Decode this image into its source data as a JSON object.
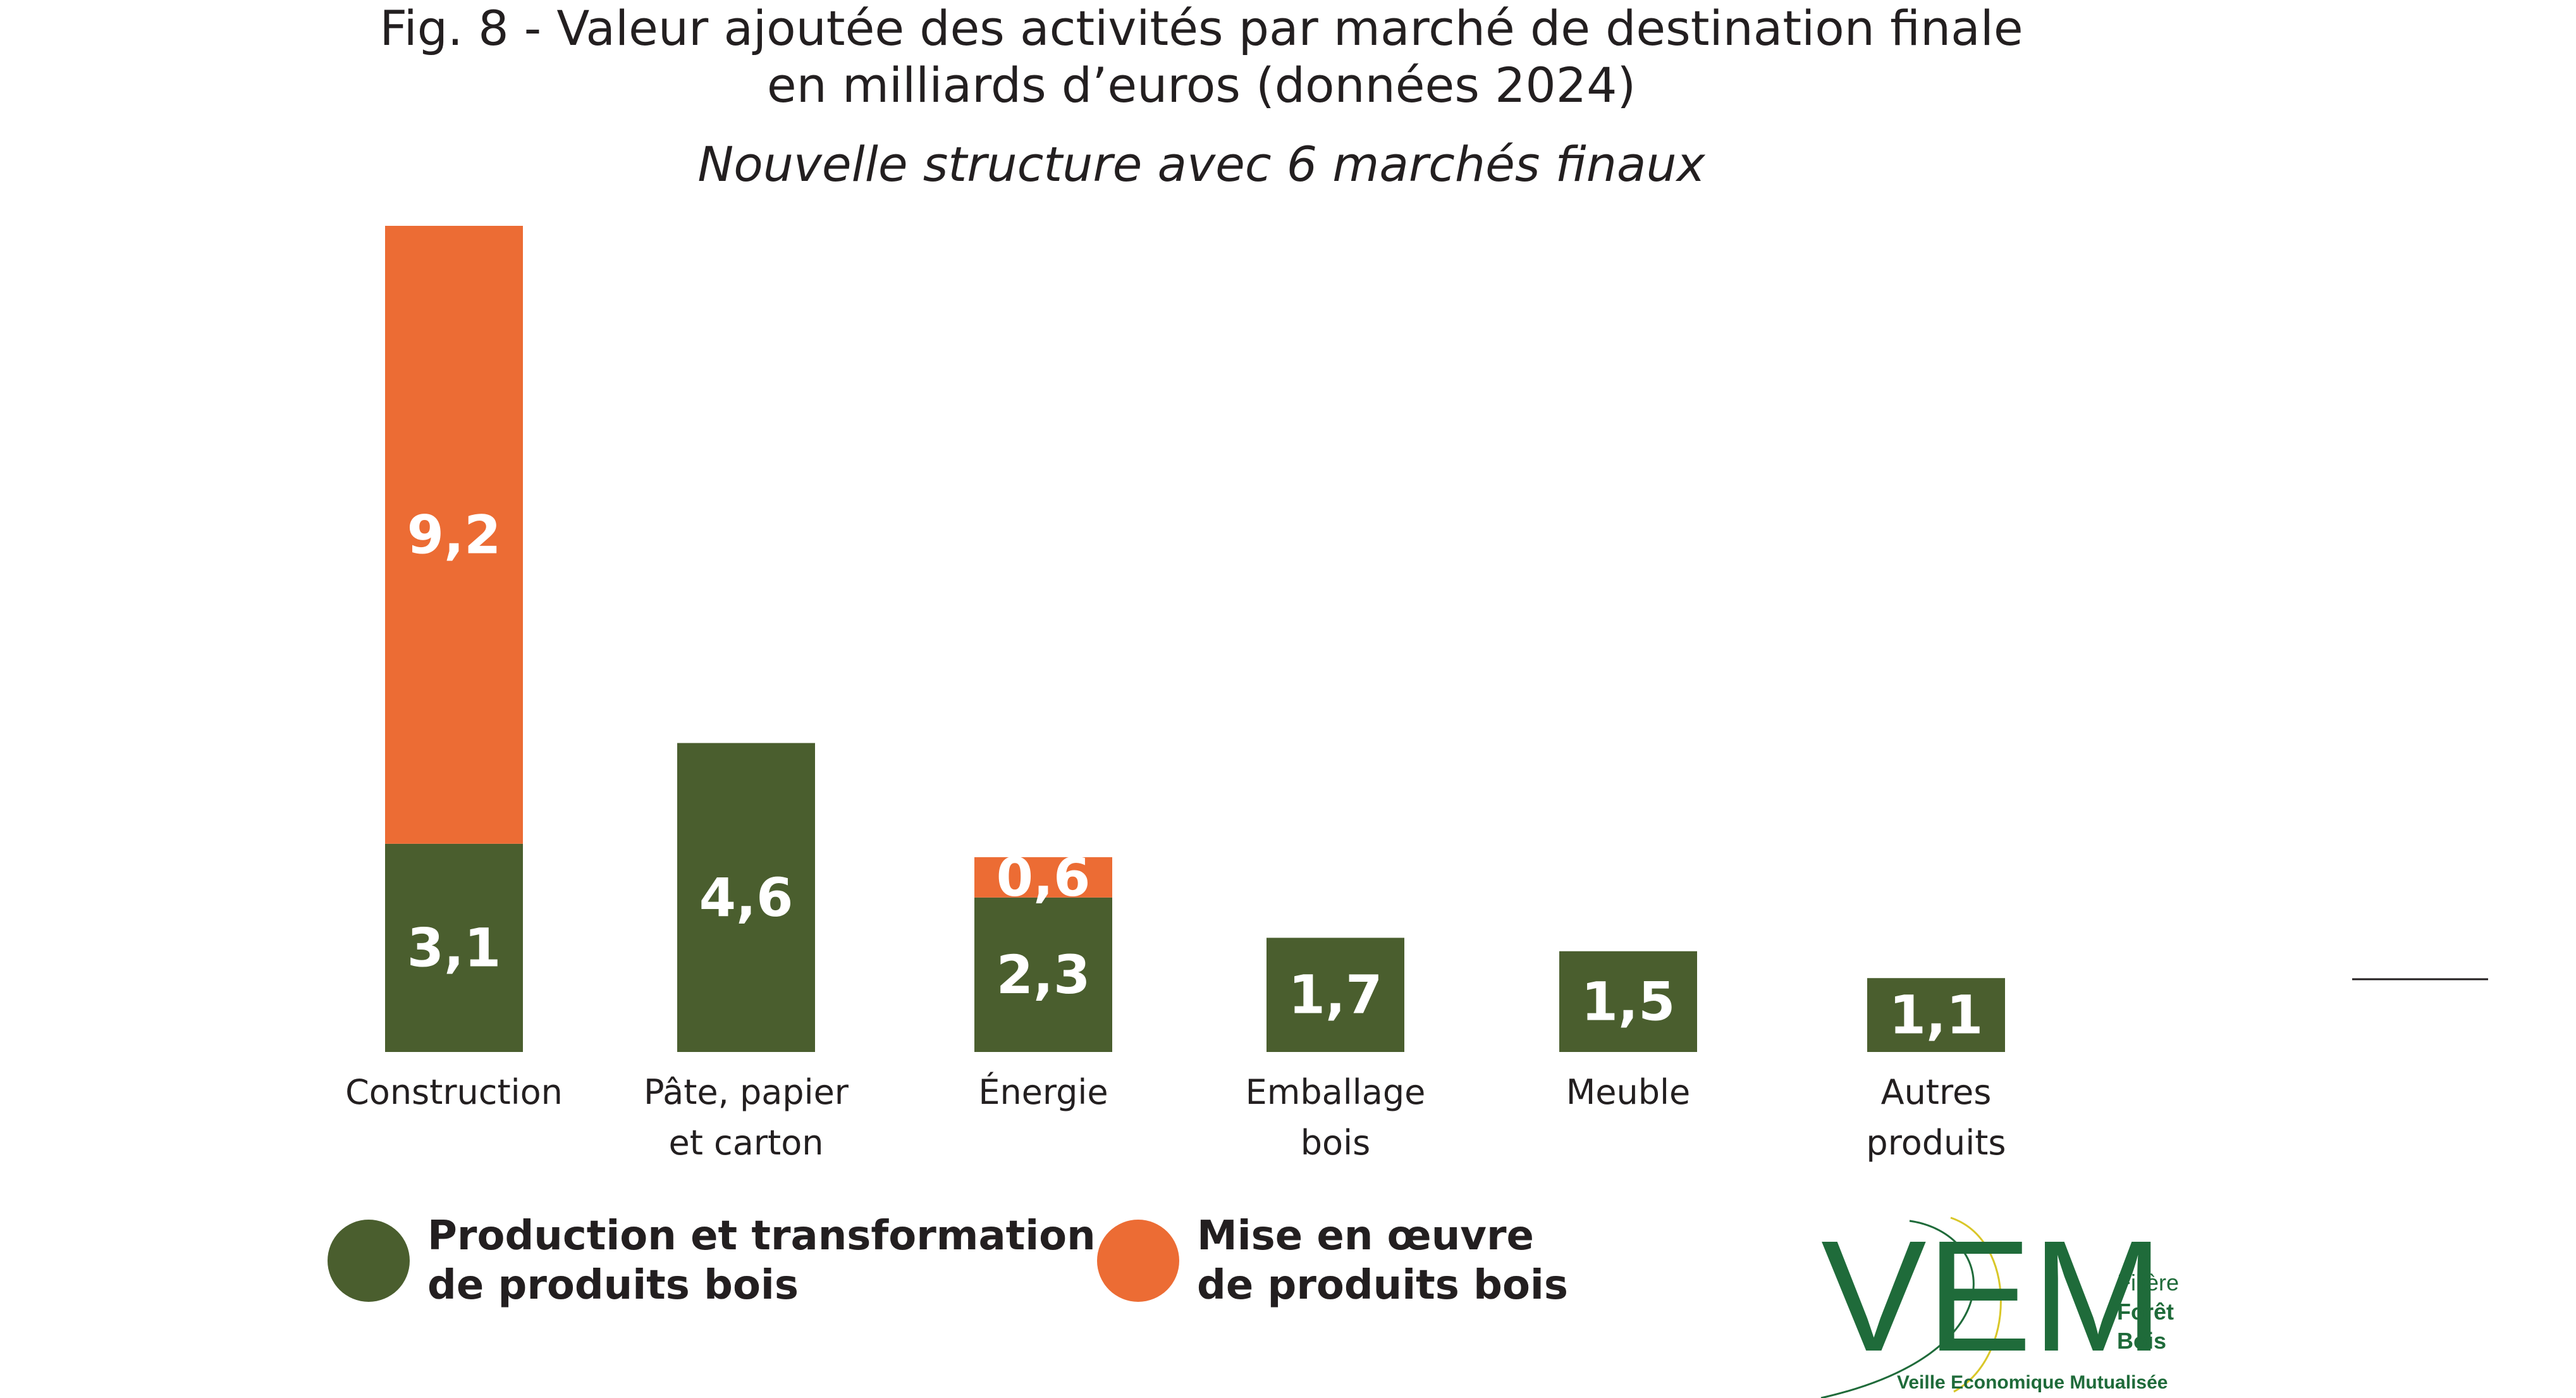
{
  "title": {
    "line1": "Fig. 8 - Valeur ajoutée des activités par marché de destination finale",
    "line2": "en milliards d’euros (données 2024)",
    "subtitle": "Nouvelle structure avec 6 marchés finaux"
  },
  "colors": {
    "production": "#4a5e2e",
    "mise_en_oeuvre": "#ec6c34",
    "logo_green": "#1f6b3a",
    "logo_yellow": "#d9c728"
  },
  "chart_data": {
    "type": "bar",
    "stacked": true,
    "categories": [
      [
        "Construction"
      ],
      [
        "Pâte, papier",
        "et carton"
      ],
      [
        "Énergie"
      ],
      [
        "Emballage",
        "bois"
      ],
      [
        "Meuble"
      ],
      [
        "Autres",
        "produits"
      ]
    ],
    "series": [
      {
        "name": "Production et transformation de produits bois",
        "color": "#4a5e2e",
        "values": [
          3.1,
          4.6,
          2.3,
          1.7,
          1.5,
          1.1
        ],
        "labels": [
          "3,1",
          "4,6",
          "2,3",
          "1,7",
          "1,5",
          "1,1"
        ]
      },
      {
        "name": "Mise en œuvre de produits bois",
        "color": "#ec6c34",
        "values": [
          9.2,
          0,
          0.6,
          0,
          0,
          0
        ],
        "labels": [
          "9,2",
          "",
          "0,6",
          "",
          "",
          ""
        ]
      }
    ],
    "ylim": [
      0,
      12.3
    ],
    "grid": false,
    "legend_position": "bottom-left"
  },
  "legend": {
    "production_label": "Production et transformation\nde produits bois",
    "mise_label": "Mise en œuvre\nde produits bois"
  },
  "logo": {
    "letters": "VEM",
    "line1": "Filière",
    "line2": "Forêt",
    "line3": "Bois",
    "tagline": "Veille Economique Mutualisée"
  }
}
